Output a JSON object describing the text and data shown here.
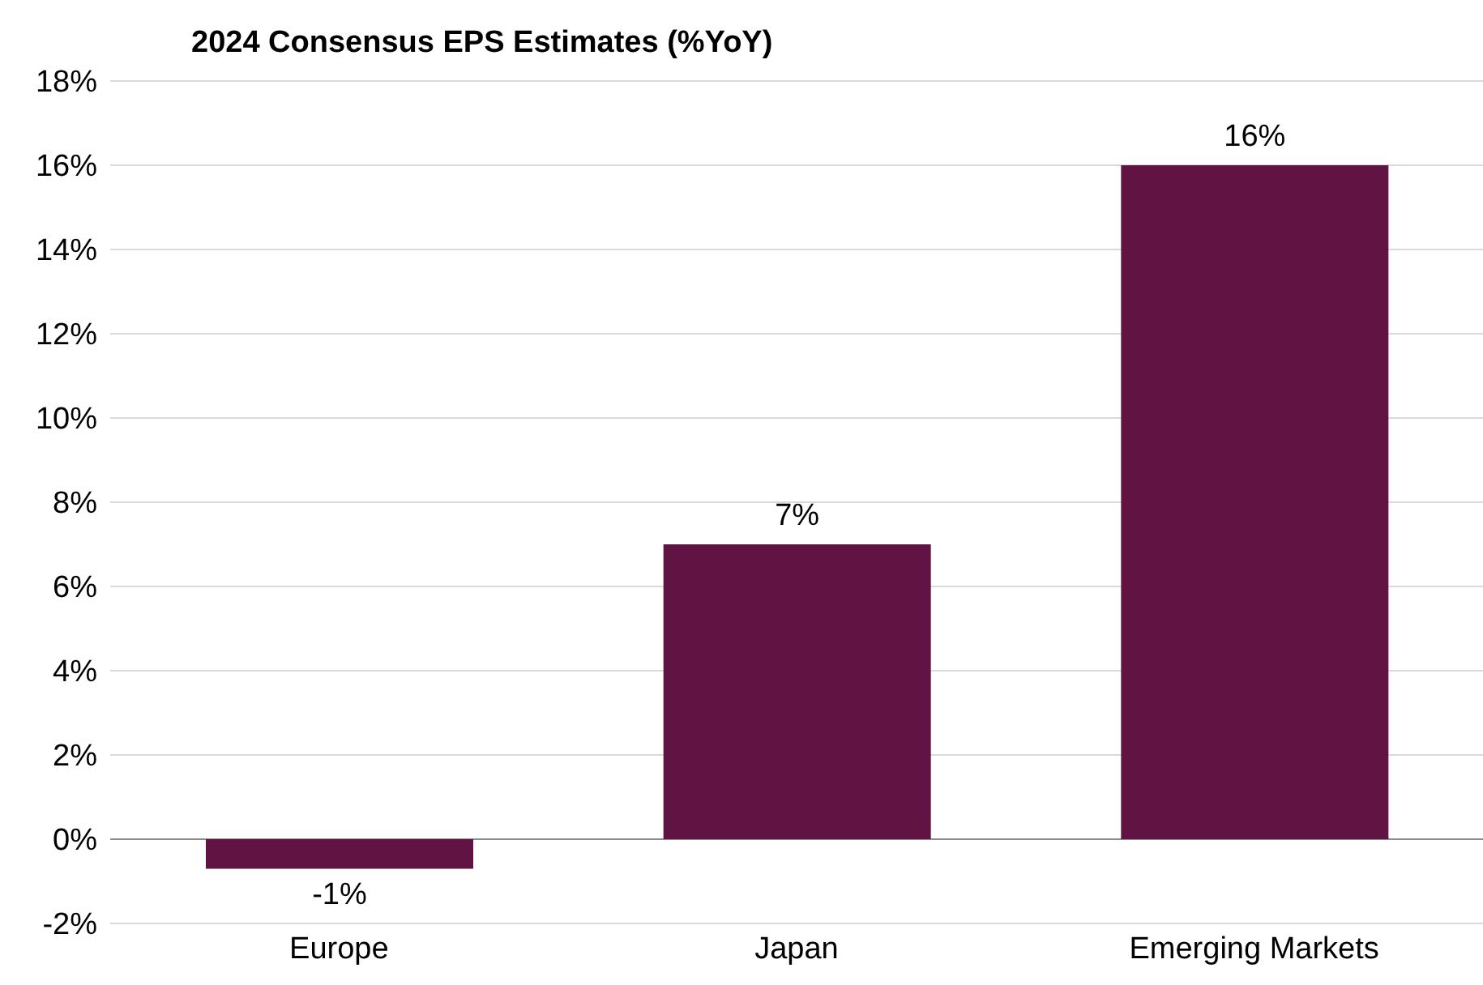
{
  "chart_data": {
    "type": "bar",
    "title": "2024 Consensus EPS Estimates (%YoY)",
    "categories": [
      "Europe",
      "Japan",
      "Emerging Markets"
    ],
    "values": [
      -0.7,
      7,
      16
    ],
    "value_labels": [
      "-1%",
      "7%",
      "16%"
    ],
    "color": "#611443",
    "ylim": [
      -2,
      18
    ],
    "yticks": [
      {
        "value": -2,
        "label": "-2%"
      },
      {
        "value": 0,
        "label": "0%"
      },
      {
        "value": 2,
        "label": "2%"
      },
      {
        "value": 4,
        "label": "4%"
      },
      {
        "value": 6,
        "label": "6%"
      },
      {
        "value": 8,
        "label": "8%"
      },
      {
        "value": 10,
        "label": "10%"
      },
      {
        "value": 12,
        "label": "12%"
      },
      {
        "value": 14,
        "label": "14%"
      },
      {
        "value": 16,
        "label": "16%"
      },
      {
        "value": 18,
        "label": "18%"
      }
    ],
    "grid": "y"
  }
}
